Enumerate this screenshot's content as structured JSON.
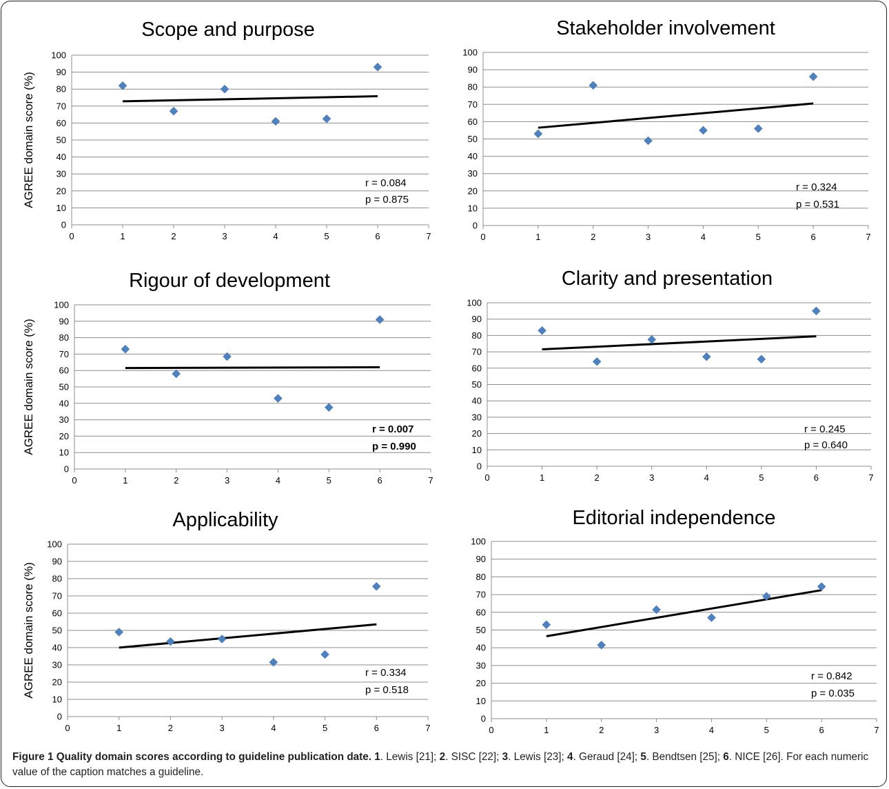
{
  "caption": {
    "title": "Figure 1 Quality domain scores according to guideline publication date.",
    "items": [
      {
        "num": "1",
        "text": ". Lewis [21]; "
      },
      {
        "num": "2",
        "text": ". SISC [22]; "
      },
      {
        "num": "3",
        "text": ". Lewis [23]; "
      },
      {
        "num": "4",
        "text": ". Geraud [24]; "
      },
      {
        "num": "5",
        "text": ". Bendtsen [25]; "
      },
      {
        "num": "6",
        "text": ". NICE [26]. For each numeric value of the caption matches a guideline."
      }
    ]
  },
  "chart_data": [
    {
      "type": "scatter",
      "title": "Scope and purpose",
      "ylabel": "AGREE domain score (%)",
      "xlim": [
        0,
        7
      ],
      "ylim": [
        0,
        100
      ],
      "x_ticks": [
        "0",
        "1",
        "2",
        "3",
        "4",
        "5",
        "6",
        "7"
      ],
      "y_ticks": [
        "0",
        "10",
        "20",
        "30",
        "40",
        "50",
        "60",
        "70",
        "80",
        "90",
        "100"
      ],
      "x": [
        1,
        2,
        3,
        4,
        5,
        6
      ],
      "values": [
        82,
        67,
        80,
        61,
        62.5,
        93
      ],
      "trendline": [
        [
          1,
          72.8
        ],
        [
          6,
          75.8
        ]
      ],
      "r_label": "r = 0.084",
      "p_label": "p = 0.875",
      "stats_bold": false
    },
    {
      "type": "scatter",
      "title": "Stakeholder involvement",
      "ylabel": "",
      "xlim": [
        0,
        7
      ],
      "ylim": [
        0,
        100
      ],
      "x_ticks": [
        "0",
        "1",
        "2",
        "3",
        "4",
        "5",
        "6",
        "7"
      ],
      "y_ticks": [
        "0",
        "10",
        "20",
        "30",
        "40",
        "50",
        "60",
        "70",
        "80",
        "90",
        "100"
      ],
      "x": [
        1,
        2,
        3,
        4,
        5,
        6
      ],
      "values": [
        53,
        81,
        49,
        55,
        56,
        86
      ],
      "trendline": [
        [
          1,
          56.5
        ],
        [
          6,
          70.5
        ]
      ],
      "r_label": "r = 0.324",
      "p_label": "p = 0.531",
      "stats_bold": false
    },
    {
      "type": "scatter",
      "title": "Rigour of development",
      "ylabel": "AGREE domain score (%)",
      "xlim": [
        0,
        7
      ],
      "ylim": [
        0,
        100
      ],
      "x_ticks": [
        "0",
        "1",
        "2",
        "3",
        "4",
        "5",
        "6",
        "7"
      ],
      "y_ticks": [
        "0",
        "10",
        "20",
        "30",
        "40",
        "50",
        "60",
        "70",
        "80",
        "90",
        "100"
      ],
      "x": [
        1,
        2,
        3,
        4,
        5,
        6
      ],
      "values": [
        73,
        58,
        68.5,
        43,
        37.5,
        91
      ],
      "trendline": [
        [
          1,
          61.5
        ],
        [
          6,
          62
        ]
      ],
      "r_label": "r =  0.007",
      "p_label": "p = 0.990",
      "stats_bold": true
    },
    {
      "type": "scatter",
      "title": "Clarity and presentation",
      "ylabel": "",
      "xlim": [
        0,
        7
      ],
      "ylim": [
        0,
        100
      ],
      "x_ticks": [
        "0",
        "1",
        "2",
        "3",
        "4",
        "5",
        "6",
        "7"
      ],
      "y_ticks": [
        "0",
        "10",
        "20",
        "30",
        "40",
        "50",
        "60",
        "70",
        "80",
        "90",
        "100"
      ],
      "x": [
        1,
        2,
        3,
        4,
        5,
        6
      ],
      "values": [
        83,
        64,
        77.5,
        67,
        65.5,
        95
      ],
      "trendline": [
        [
          1,
          71.5
        ],
        [
          6,
          79.5
        ]
      ],
      "r_label": "r = 0.245",
      "p_label": "p = 0.640",
      "stats_bold": false
    },
    {
      "type": "scatter",
      "title": "Applicability",
      "ylabel": "AGREE domain score (%)",
      "xlim": [
        0,
        7
      ],
      "ylim": [
        0,
        100
      ],
      "x_ticks": [
        "0",
        "1",
        "2",
        "3",
        "4",
        "5",
        "6",
        "7"
      ],
      "y_ticks": [
        "0",
        "10",
        "20",
        "30",
        "40",
        "50",
        "60",
        "70",
        "80",
        "90",
        "100"
      ],
      "x": [
        1,
        2,
        3,
        4,
        5,
        6
      ],
      "values": [
        49,
        43.5,
        45,
        31.5,
        36,
        75.5
      ],
      "trendline": [
        [
          1,
          40
        ],
        [
          6,
          53.5
        ]
      ],
      "r_label": "r = 0.334",
      "p_label": "p = 0.518",
      "stats_bold": false
    },
    {
      "type": "scatter",
      "title": "Editorial independence",
      "ylabel": "",
      "xlim": [
        0,
        7
      ],
      "ylim": [
        0,
        100
      ],
      "x_ticks": [
        "0",
        "1",
        "2",
        "3",
        "4",
        "5",
        "6",
        "7"
      ],
      "y_ticks": [
        "0",
        "10",
        "20",
        "30",
        "40",
        "50",
        "60",
        "70",
        "80",
        "90",
        "100"
      ],
      "x": [
        1,
        2,
        3,
        4,
        5,
        6
      ],
      "values": [
        53,
        41.5,
        61.5,
        57,
        69,
        74.5
      ],
      "trendline": [
        [
          1,
          46.5
        ],
        [
          6,
          72.5
        ]
      ],
      "r_label": "r = 0.842",
      "p_label": "p = 0.035",
      "stats_bold": false
    }
  ]
}
